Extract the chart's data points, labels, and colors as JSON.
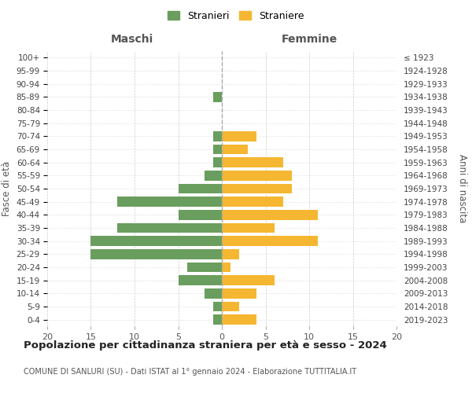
{
  "age_groups": [
    "0-4",
    "5-9",
    "10-14",
    "15-19",
    "20-24",
    "25-29",
    "30-34",
    "35-39",
    "40-44",
    "45-49",
    "50-54",
    "55-59",
    "60-64",
    "65-69",
    "70-74",
    "75-79",
    "80-84",
    "85-89",
    "90-94",
    "95-99",
    "100+"
  ],
  "birth_years": [
    "2019-2023",
    "2014-2018",
    "2009-2013",
    "2004-2008",
    "1999-2003",
    "1994-1998",
    "1989-1993",
    "1984-1988",
    "1979-1983",
    "1974-1978",
    "1969-1973",
    "1964-1968",
    "1959-1963",
    "1954-1958",
    "1949-1953",
    "1944-1948",
    "1939-1943",
    "1934-1938",
    "1929-1933",
    "1924-1928",
    "≤ 1923"
  ],
  "males": [
    1,
    1,
    2,
    5,
    4,
    15,
    15,
    12,
    5,
    12,
    5,
    2,
    1,
    1,
    1,
    0,
    0,
    1,
    0,
    0,
    0
  ],
  "females": [
    4,
    2,
    4,
    6,
    1,
    2,
    11,
    6,
    11,
    7,
    8,
    8,
    7,
    3,
    4,
    0,
    0,
    0,
    0,
    0,
    0
  ],
  "male_color": "#6a9e5e",
  "female_color": "#f5b731",
  "background_color": "#ffffff",
  "grid_color": "#cccccc",
  "title": "Popolazione per cittadinanza straniera per età e sesso - 2024",
  "subtitle": "COMUNE DI SANLURI (SU) - Dati ISTAT al 1° gennaio 2024 - Elaborazione TUTTITALIA.IT",
  "xlabel_left": "Maschi",
  "xlabel_right": "Femmine",
  "ylabel_left": "Fasce di età",
  "ylabel_right": "Anni di nascita",
  "legend_males": "Stranieri",
  "legend_females": "Straniere",
  "xlim": 20
}
